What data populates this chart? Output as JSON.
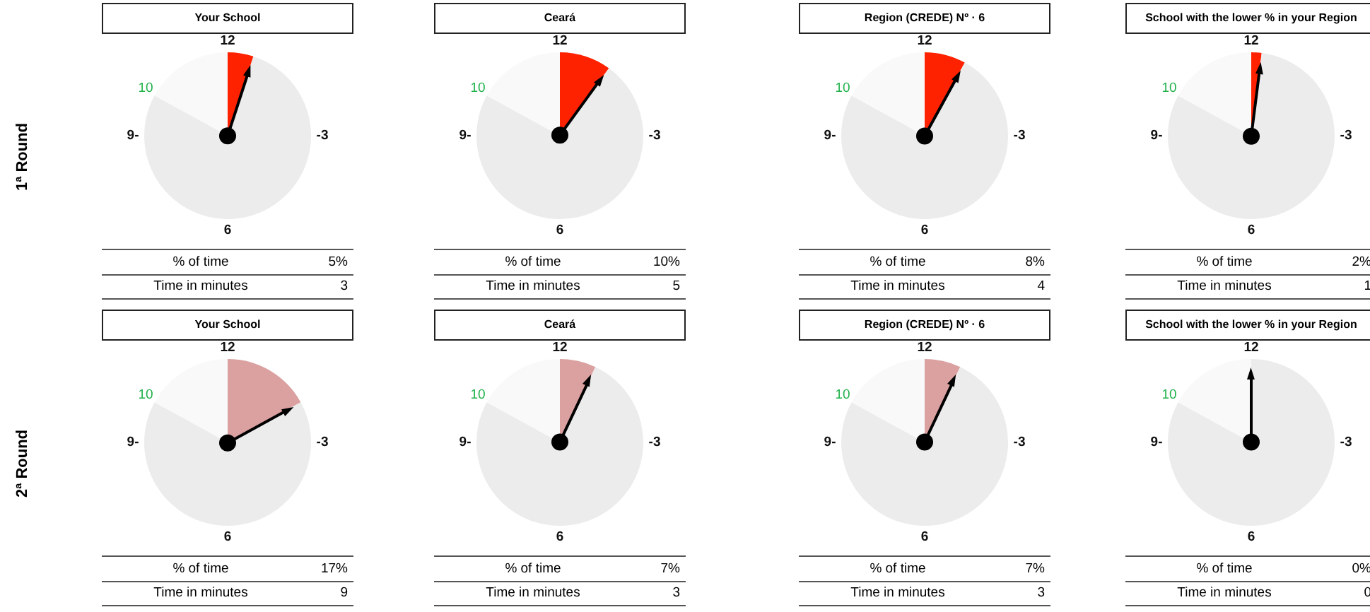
{
  "chart_data": [
    {
      "type": "pie",
      "title": "Your School",
      "ylabel": "1ª Round",
      "categories": [
        null,
        null,
        null
      ],
      "values": [
        5,
        78,
        17
      ],
      "colors": [
        "#ff2200",
        "#ececec",
        "#f9f9f9"
      ],
      "annotations": [
        "12",
        "-3",
        "6",
        "9-",
        "10",
        "% of time",
        "5%",
        "Time in minutes",
        "3"
      ]
    },
    {
      "type": "pie",
      "title": "Ceará",
      "categories": [
        null,
        null,
        null
      ],
      "values": [
        10,
        73,
        17
      ],
      "colors": [
        "#ff2200",
        "#ececec",
        "#f9f9f9"
      ],
      "annotations": [
        "12",
        "-3",
        "6",
        "9-",
        "10",
        "% of time",
        "10%",
        "Time in minutes",
        "5"
      ]
    },
    {
      "type": "pie",
      "title": "Region (CREDE) Nº  ·   6",
      "categories": [
        null,
        null,
        null
      ],
      "values": [
        8,
        75,
        17
      ],
      "colors": [
        "#ff2200",
        "#ececec",
        "#f9f9f9"
      ],
      "annotations": [
        "12",
        "-3",
        "6",
        "9-",
        "10",
        "% of time",
        "8%",
        "Time in minutes",
        "4"
      ]
    },
    {
      "type": "pie",
      "title": "School with the lower % in your Region",
      "categories": [
        null,
        null,
        null
      ],
      "values": [
        2,
        81,
        17
      ],
      "colors": [
        "#ff2200",
        "#ececec",
        "#f9f9f9"
      ],
      "annotations": [
        "12",
        "-3",
        "6",
        "9-",
        "10",
        "% of time",
        "2%",
        "Time in minutes",
        "1"
      ]
    },
    {
      "type": "pie",
      "title": "Your School",
      "ylabel": "2ª Round",
      "categories": [
        null,
        null,
        null
      ],
      "values": [
        17,
        66,
        17
      ],
      "colors": [
        "#dba0a0",
        "#ececec",
        "#f9f9f9"
      ],
      "annotations": [
        "12",
        "-3",
        "6",
        "9-",
        "10",
        "% of time",
        "17%",
        "Time in minutes",
        "9"
      ]
    },
    {
      "type": "pie",
      "title": "Ceará",
      "categories": [
        null,
        null,
        null
      ],
      "values": [
        7,
        76,
        17
      ],
      "colors": [
        "#dba0a0",
        "#ececec",
        "#f9f9f9"
      ],
      "annotations": [
        "12",
        "-3",
        "6",
        "9-",
        "10",
        "% of time",
        "7%",
        "Time in minutes",
        "3"
      ]
    },
    {
      "type": "pie",
      "title": "Region (CREDE) Nº  ·   6",
      "categories": [
        null,
        null,
        null
      ],
      "values": [
        7,
        76,
        17
      ],
      "colors": [
        "#dba0a0",
        "#ececec",
        "#f9f9f9"
      ],
      "annotations": [
        "12",
        "-3",
        "6",
        "9-",
        "10",
        "% of time",
        "7%",
        "Time in minutes",
        "3"
      ]
    },
    {
      "type": "pie",
      "title": "School with the lower % in your Region",
      "categories": [
        null,
        null,
        null
      ],
      "values": [
        0,
        83,
        17
      ],
      "colors": [
        "#dba0a0",
        "#ececec",
        "#f9f9f9"
      ],
      "annotations": [
        "12",
        "-3",
        "6",
        "9-",
        "10",
        "% of time",
        "0%",
        "Time in minutes",
        "0"
      ]
    }
  ]
}
